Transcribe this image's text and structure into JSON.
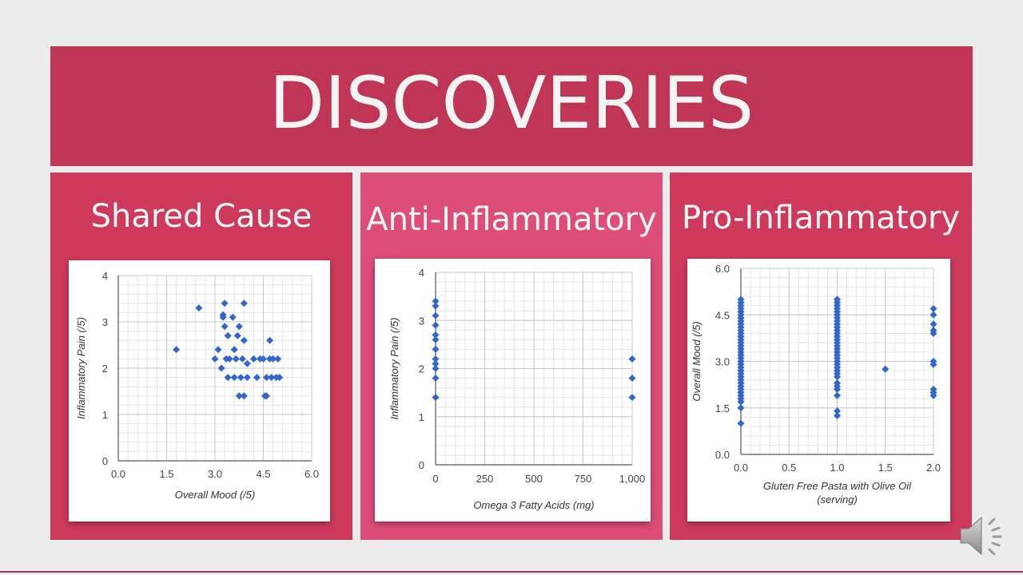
{
  "title": "DISCOVERIES",
  "panels": [
    {
      "heading": "Shared Cause"
    },
    {
      "heading": "Anti-Inflammatory"
    },
    {
      "heading": "Pro-Inflammatory"
    }
  ],
  "icons": {
    "speaker": "speaker-icon"
  },
  "colors": {
    "banner": "#be3556",
    "panel": "#ce3a5c",
    "panel_mid": "#dc4d77",
    "marker": "#3366cc"
  },
  "chart_data": [
    {
      "type": "scatter",
      "xlabel": "Overall Mood (/5)",
      "ylabel": "Inflammatory Pain (/5)",
      "xlim": [
        0,
        6
      ],
      "ylim": [
        0,
        4
      ],
      "xticks": [
        0,
        1.5,
        3,
        4.5,
        6
      ],
      "xtick_labels": [
        "0.0",
        "1.5",
        "3.0",
        "4.5",
        "6.0"
      ],
      "yticks": [
        0,
        1,
        2,
        3,
        4
      ],
      "ytick_labels": [
        "0",
        "1",
        "2",
        "3",
        "4"
      ],
      "points": [
        [
          1.8,
          2.4
        ],
        [
          2.5,
          3.3
        ],
        [
          3.0,
          2.2
        ],
        [
          3.1,
          2.4
        ],
        [
          3.2,
          2.0
        ],
        [
          3.3,
          3.4
        ],
        [
          3.25,
          3.1
        ],
        [
          3.25,
          3.15
        ],
        [
          3.3,
          2.9
        ],
        [
          3.35,
          2.2
        ],
        [
          3.4,
          1.8
        ],
        [
          3.4,
          2.7
        ],
        [
          3.45,
          2.2
        ],
        [
          3.55,
          3.1
        ],
        [
          3.6,
          2.4
        ],
        [
          3.6,
          1.8
        ],
        [
          3.65,
          2.2
        ],
        [
          3.7,
          2.7
        ],
        [
          3.75,
          2.9
        ],
        [
          3.75,
          1.4
        ],
        [
          3.8,
          1.8
        ],
        [
          3.85,
          2.2
        ],
        [
          3.9,
          2.6
        ],
        [
          3.9,
          3.4
        ],
        [
          3.9,
          1.4
        ],
        [
          4.0,
          1.8
        ],
        [
          4.0,
          2.1
        ],
        [
          4.2,
          2.2
        ],
        [
          4.3,
          1.8
        ],
        [
          4.4,
          2.2
        ],
        [
          4.5,
          2.2
        ],
        [
          4.55,
          1.4
        ],
        [
          4.6,
          1.8
        ],
        [
          4.6,
          1.4
        ],
        [
          4.7,
          2.6
        ],
        [
          4.7,
          2.2
        ],
        [
          4.75,
          1.8
        ],
        [
          4.8,
          2.2
        ],
        [
          4.9,
          1.8
        ],
        [
          4.95,
          2.2
        ],
        [
          5.0,
          1.8
        ]
      ]
    },
    {
      "type": "scatter",
      "xlabel": "Omega 3 Fatty Acids (mg)",
      "ylabel": "Inflammatory Pain (/5)",
      "xlim": [
        0,
        1000
      ],
      "ylim": [
        0,
        4
      ],
      "xticks": [
        0,
        250,
        500,
        750,
        1000
      ],
      "xtick_labels": [
        "0",
        "250",
        "500",
        "750",
        "1,000"
      ],
      "yticks": [
        0,
        1,
        2,
        3,
        4
      ],
      "ytick_labels": [
        "0",
        "1",
        "2",
        "3",
        "4"
      ],
      "points": [
        [
          0,
          3.4
        ],
        [
          0,
          3.3
        ],
        [
          0,
          3.1
        ],
        [
          0,
          2.9
        ],
        [
          0,
          2.7
        ],
        [
          0,
          2.6
        ],
        [
          0,
          2.4
        ],
        [
          0,
          2.2
        ],
        [
          0,
          2.1
        ],
        [
          0,
          2.0
        ],
        [
          0,
          1.8
        ],
        [
          0,
          1.4
        ],
        [
          1000,
          2.2
        ],
        [
          1000,
          1.8
        ],
        [
          1000,
          1.4
        ]
      ]
    },
    {
      "type": "scatter",
      "xlabel": "Gluten Free Pasta with Olive Oil (serving)",
      "ylabel": "Overall Mood (/5)",
      "xlim": [
        0,
        2
      ],
      "ylim": [
        0,
        6
      ],
      "xticks": [
        0,
        0.5,
        1,
        1.5,
        2
      ],
      "xtick_labels": [
        "0.0",
        "0.5",
        "1.0",
        "1.5",
        "2.0"
      ],
      "yticks": [
        0,
        1.5,
        3,
        4.5,
        6
      ],
      "ytick_labels": [
        "0.0",
        "1.5",
        "3.0",
        "4.5",
        "6.0"
      ],
      "points": [
        [
          0,
          5.0
        ],
        [
          0,
          4.9
        ],
        [
          0,
          4.8
        ],
        [
          0,
          4.7
        ],
        [
          0,
          4.6
        ],
        [
          0,
          4.5
        ],
        [
          0,
          4.4
        ],
        [
          0,
          4.3
        ],
        [
          0,
          4.2
        ],
        [
          0,
          4.1
        ],
        [
          0,
          4.0
        ],
        [
          0,
          3.9
        ],
        [
          0,
          3.8
        ],
        [
          0,
          3.7
        ],
        [
          0,
          3.6
        ],
        [
          0,
          3.5
        ],
        [
          0,
          3.4
        ],
        [
          0,
          3.3
        ],
        [
          0,
          3.2
        ],
        [
          0,
          3.1
        ],
        [
          0,
          3.0
        ],
        [
          0,
          2.9
        ],
        [
          0,
          2.8
        ],
        [
          0,
          2.7
        ],
        [
          0,
          2.6
        ],
        [
          0,
          2.5
        ],
        [
          0,
          2.4
        ],
        [
          0,
          2.3
        ],
        [
          0,
          2.2
        ],
        [
          0,
          2.1
        ],
        [
          0,
          2.0
        ],
        [
          0,
          1.9
        ],
        [
          0,
          1.8
        ],
        [
          0,
          1.7
        ],
        [
          0,
          1.5
        ],
        [
          0,
          1.0
        ],
        [
          1,
          5.0
        ],
        [
          1,
          4.9
        ],
        [
          1,
          4.8
        ],
        [
          1,
          4.7
        ],
        [
          1,
          4.6
        ],
        [
          1,
          4.5
        ],
        [
          1,
          4.4
        ],
        [
          1,
          4.3
        ],
        [
          1,
          4.2
        ],
        [
          1,
          4.1
        ],
        [
          1,
          4.0
        ],
        [
          1,
          3.9
        ],
        [
          1,
          3.8
        ],
        [
          1,
          3.7
        ],
        [
          1,
          3.6
        ],
        [
          1,
          3.5
        ],
        [
          1,
          3.4
        ],
        [
          1,
          3.3
        ],
        [
          1,
          3.2
        ],
        [
          1,
          3.1
        ],
        [
          1,
          3.0
        ],
        [
          1,
          2.9
        ],
        [
          1,
          2.8
        ],
        [
          1,
          2.7
        ],
        [
          1,
          2.6
        ],
        [
          1,
          2.5
        ],
        [
          1,
          2.3
        ],
        [
          1,
          2.2
        ],
        [
          1,
          2.1
        ],
        [
          1,
          1.9
        ],
        [
          1,
          1.4
        ],
        [
          1,
          1.25
        ],
        [
          1.5,
          2.75
        ],
        [
          2,
          4.7
        ],
        [
          2,
          4.5
        ],
        [
          2,
          4.2
        ],
        [
          2,
          4.0
        ],
        [
          2,
          3.9
        ],
        [
          2,
          3.0
        ],
        [
          2,
          2.9
        ],
        [
          2,
          2.1
        ],
        [
          2,
          2.0
        ],
        [
          2,
          1.9
        ]
      ]
    }
  ]
}
